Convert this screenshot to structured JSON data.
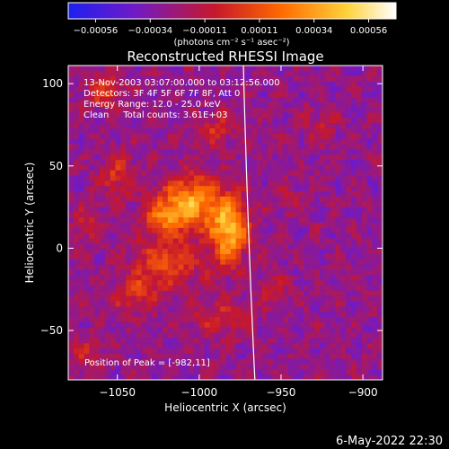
{
  "chart_data": {
    "type": "heatmap",
    "title": "Reconstructed RHESSI Image",
    "xlabel": "Heliocentric X (arcsec)",
    "ylabel": "Heliocentric Y (arcsec)",
    "xlim": [
      -1080,
      -888
    ],
    "ylim": [
      -80,
      111
    ],
    "x_ticks": [
      {
        "value": -1050,
        "label": "−1050"
      },
      {
        "value": -1000,
        "label": "−1000"
      },
      {
        "value": -950,
        "label": "−950"
      },
      {
        "value": -900,
        "label": "−900"
      }
    ],
    "y_ticks": [
      {
        "value": -50,
        "label": "−50"
      },
      {
        "value": 0,
        "label": "0"
      },
      {
        "value": 50,
        "label": "50"
      },
      {
        "value": 100,
        "label": "100"
      }
    ],
    "annotations": [
      "13-Nov-2003 03:07:00.000 to 03:12:56.000",
      "Detectors: 3F 4F 5F 6F 7F 8F, Att 0",
      "Energy Range: 12.0 - 25.0 keV",
      "Clean     Total counts: 3.61E+03"
    ],
    "peak_label": "Position of Peak = [-982,11]",
    "peak": {
      "x": -982,
      "y": 11
    },
    "limb_arc": {
      "x_top": -973,
      "x_bottom": -966
    },
    "colorbar": {
      "ticks": [
        "−0.00056",
        "−0.00034",
        "−0.00011",
        "0.00011",
        "0.00034",
        "0.00056"
      ],
      "units": "(photons cm⁻² s⁻¹ asec⁻²)",
      "min": -0.00056,
      "max": 0.00056,
      "colors": [
        "#1d20f0",
        "#6f1ac8",
        "#c8182a",
        "#ff6a00",
        "#ffd23a",
        "#ffffff"
      ]
    },
    "sources": [
      {
        "x": -1005,
        "y": 28,
        "amp": 0.0005,
        "sx": 12,
        "sy": 11
      },
      {
        "x": -982,
        "y": 11,
        "amp": 0.00056,
        "sx": 8,
        "sy": 14
      },
      {
        "x": -1022,
        "y": 18,
        "amp": 0.00032,
        "sx": 9,
        "sy": 8
      },
      {
        "x": -1020,
        "y": -10,
        "amp": 0.0003,
        "sx": 14,
        "sy": 10
      },
      {
        "x": -1050,
        "y": 45,
        "amp": 0.00022,
        "sx": 7,
        "sy": 10
      },
      {
        "x": -1058,
        "y": 96,
        "amp": 0.00024,
        "sx": 8,
        "sy": 8
      },
      {
        "x": -988,
        "y": -42,
        "amp": 0.00018,
        "sx": 12,
        "sy": 8
      },
      {
        "x": -955,
        "y": -25,
        "amp": 0.00014,
        "sx": 7,
        "sy": 7
      },
      {
        "x": -1040,
        "y": -28,
        "amp": 0.0002,
        "sx": 10,
        "sy": 8
      },
      {
        "x": -945,
        "y": 30,
        "amp": 0.0001,
        "sx": 7,
        "sy": 7
      },
      {
        "x": -925,
        "y": 75,
        "amp": 0.00012,
        "sx": 8,
        "sy": 8
      },
      {
        "x": -1068,
        "y": -65,
        "amp": 0.00016,
        "sx": 7,
        "sy": 7
      },
      {
        "x": -990,
        "y": 72,
        "amp": 0.00018,
        "sx": 9,
        "sy": 7
      },
      {
        "x": -1068,
        "y": 15,
        "amp": 0.00014,
        "sx": 6,
        "sy": 9
      }
    ]
  },
  "footer": {
    "date": "6-May-2022 22:30"
  }
}
